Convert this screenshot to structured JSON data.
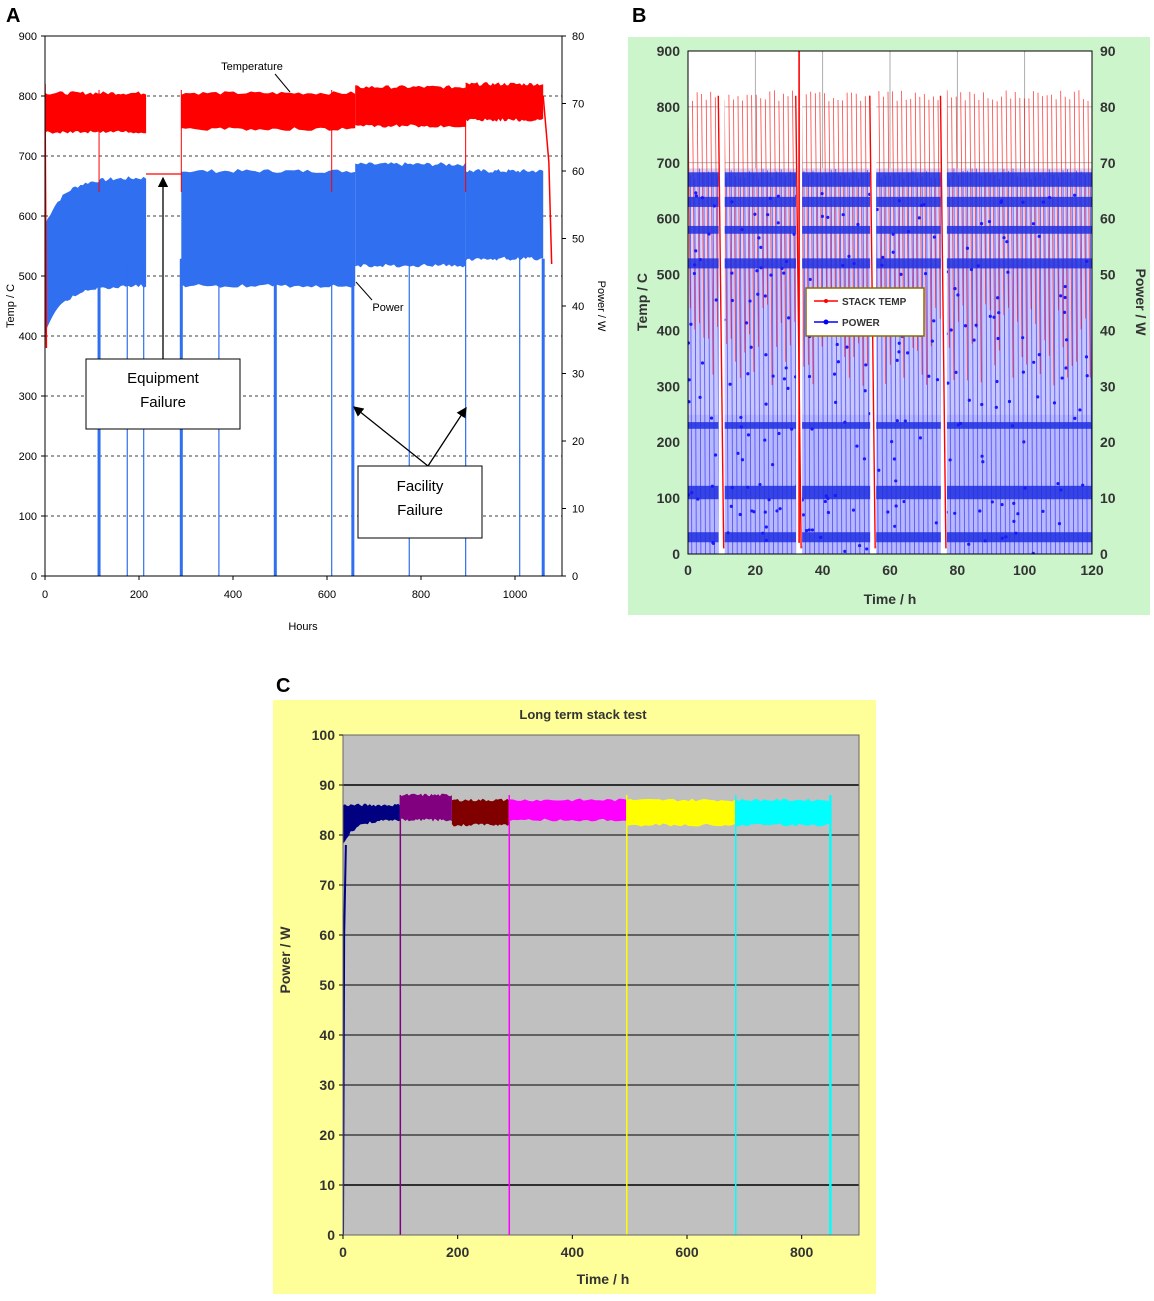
{
  "panels": {
    "a": {
      "letter": "A"
    },
    "b": {
      "letter": "B"
    },
    "c": {
      "letter": "C"
    }
  },
  "colors": {
    "temp_red": "#ff0000",
    "power_blue": "#2f6ff0",
    "panel_b_bg": "#ccf5cc",
    "panel_c_bg": "#ffff99",
    "panel_c_plot": "#c0c0c0",
    "navy": "#000080",
    "purple": "#800080",
    "maroon": "#800000",
    "magenta": "#ff00ff",
    "yellow": "#ffff00",
    "cyan": "#00ffff"
  },
  "chart_data": [
    {
      "id": "A",
      "type": "line",
      "title": "",
      "xlabel": "Hours",
      "ylabel_left": "Temp / C",
      "ylabel_right": "Power / W",
      "xlim": [
        0,
        1100
      ],
      "ylim_left": [
        0,
        900
      ],
      "ylim_right": [
        0,
        80
      ],
      "x_ticks": [
        0,
        200,
        400,
        600,
        800,
        1000
      ],
      "y_ticks_left": [
        0,
        100,
        200,
        300,
        400,
        500,
        600,
        700,
        800,
        900
      ],
      "y_ticks_right": [
        0,
        10,
        20,
        30,
        40,
        50,
        60,
        70,
        80
      ],
      "grid": "horizontal dashed",
      "series": [
        {
          "name": "Temperature",
          "axis": "left",
          "segments": [
            {
              "x": [
                0,
                215
              ],
              "low": 740,
              "high": 805
            },
            {
              "x": [
                290,
                660
              ],
              "low": 745,
              "high": 805
            },
            {
              "x": [
                660,
                895
              ],
              "low": 750,
              "high": 815
            },
            {
              "x": [
                895,
                1060
              ],
              "low": 760,
              "high": 820
            }
          ]
        },
        {
          "name": "Power",
          "axis": "right",
          "segments": [
            {
              "x": [
                0,
                215
              ],
              "low": 36,
              "high": 59
            },
            {
              "x": [
                290,
                660
              ],
              "low": 43,
              "high": 60
            },
            {
              "x": [
                660,
                895
              ],
              "low": 46,
              "high": 61
            },
            {
              "x": [
                895,
                1060
              ],
              "low": 47,
              "high": 60
            }
          ]
        }
      ],
      "gap_temperature": {
        "x": [
          215,
          290
        ],
        "value": 670
      },
      "annotations": [
        {
          "text": "Temperature"
        },
        {
          "text": "Power"
        },
        {
          "text": "Equipment\nFailure"
        },
        {
          "text": "Facility\nFailure"
        }
      ],
      "failure_lines_hours": [
        115,
        175,
        210,
        290,
        370,
        490,
        610,
        655,
        775,
        895,
        1010,
        1060
      ]
    },
    {
      "id": "B",
      "type": "line",
      "title": "",
      "xlabel": "Time / h",
      "ylabel_left": "Temp / C",
      "ylabel_right": "Power / W",
      "xlim": [
        0,
        120
      ],
      "ylim_left": [
        0,
        900
      ],
      "ylim_right": [
        0,
        90
      ],
      "x_ticks": [
        0,
        20,
        40,
        60,
        80,
        100,
        120
      ],
      "y_ticks_left": [
        0,
        100,
        200,
        300,
        400,
        500,
        600,
        700,
        800,
        900
      ],
      "y_ticks_right": [
        0,
        10,
        20,
        30,
        40,
        50,
        60,
        70,
        80,
        90
      ],
      "grid": "both",
      "legend": [
        "STACK TEMP",
        "POWER"
      ],
      "legend_position": "center",
      "temp_cycle_range": [
        300,
        830
      ],
      "power_cycle_range_w": [
        0,
        69
      ],
      "shutdowns_h": [
        10,
        33,
        55,
        76
      ]
    },
    {
      "id": "C",
      "type": "scatter",
      "title": "Long term stack test",
      "xlabel": "Time / h",
      "ylabel": "Power / W",
      "xlim": [
        0,
        900
      ],
      "ylim": [
        0,
        100
      ],
      "x_ticks": [
        0,
        200,
        400,
        600,
        800
      ],
      "y_ticks": [
        0,
        10,
        20,
        30,
        40,
        50,
        60,
        70,
        80,
        90,
        100
      ],
      "grid": "horizontal",
      "segments": [
        {
          "color": "#000080",
          "x": [
            0,
            100
          ],
          "low": 78,
          "high": 86
        },
        {
          "color": "#800080",
          "x": [
            100,
            190
          ],
          "low": 83,
          "high": 88
        },
        {
          "color": "#800000",
          "x": [
            190,
            290
          ],
          "low": 82,
          "high": 87
        },
        {
          "color": "#ff00ff",
          "x": [
            290,
            495
          ],
          "low": 83,
          "high": 87
        },
        {
          "color": "#ffff00",
          "x": [
            495,
            685
          ],
          "low": 82,
          "high": 87
        },
        {
          "color": "#00ffff",
          "x": [
            685,
            850
          ],
          "low": 82,
          "high": 87
        }
      ],
      "drop_times_h": [
        100,
        290,
        495,
        685,
        850
      ]
    }
  ]
}
